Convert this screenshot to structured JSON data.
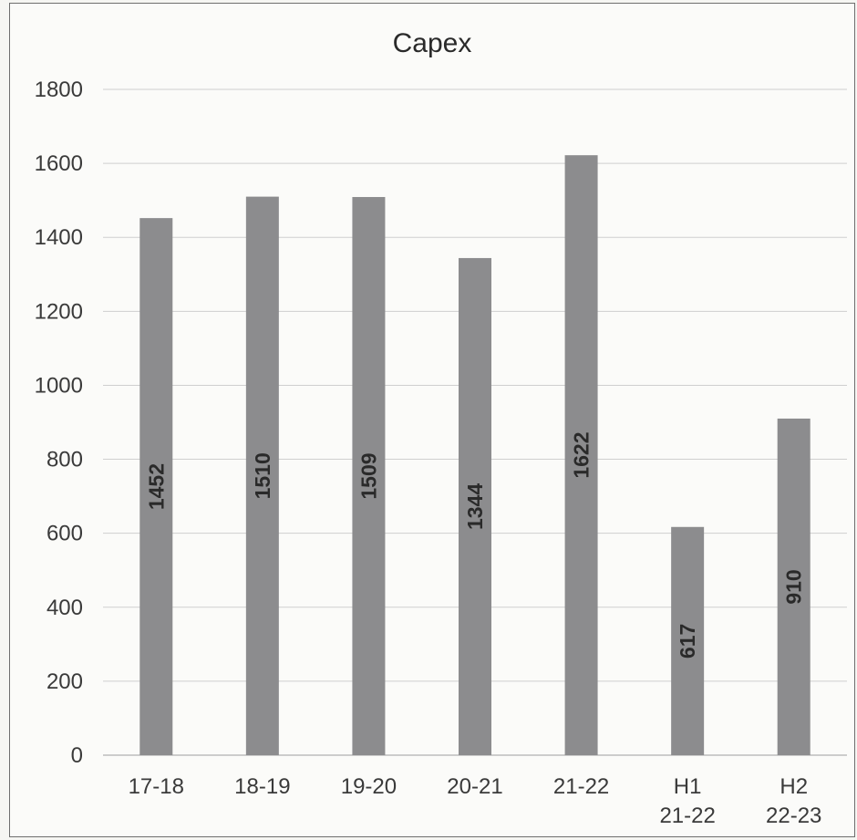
{
  "chart_data": {
    "type": "bar",
    "title": "Capex",
    "xlabel": "",
    "ylabel": "",
    "ylim": [
      0,
      1800
    ],
    "yticks": [
      0,
      200,
      400,
      600,
      800,
      1000,
      1200,
      1400,
      1600,
      1800
    ],
    "grid": true,
    "legend": "none",
    "categories": [
      [
        "17-18"
      ],
      [
        "18-19"
      ],
      [
        "19-20"
      ],
      [
        "20-21"
      ],
      [
        "21-22"
      ],
      [
        "H1",
        "21-22"
      ],
      [
        "H2",
        "22-23"
      ]
    ],
    "values": [
      1452,
      1510,
      1509,
      1344,
      1622,
      617,
      910
    ],
    "data_labels": [
      "1452",
      "1510",
      "1509",
      "1344",
      "1622",
      "617",
      "910"
    ],
    "colors": {
      "bar": "#8c8c8e",
      "label": "#2a2a2a"
    }
  }
}
